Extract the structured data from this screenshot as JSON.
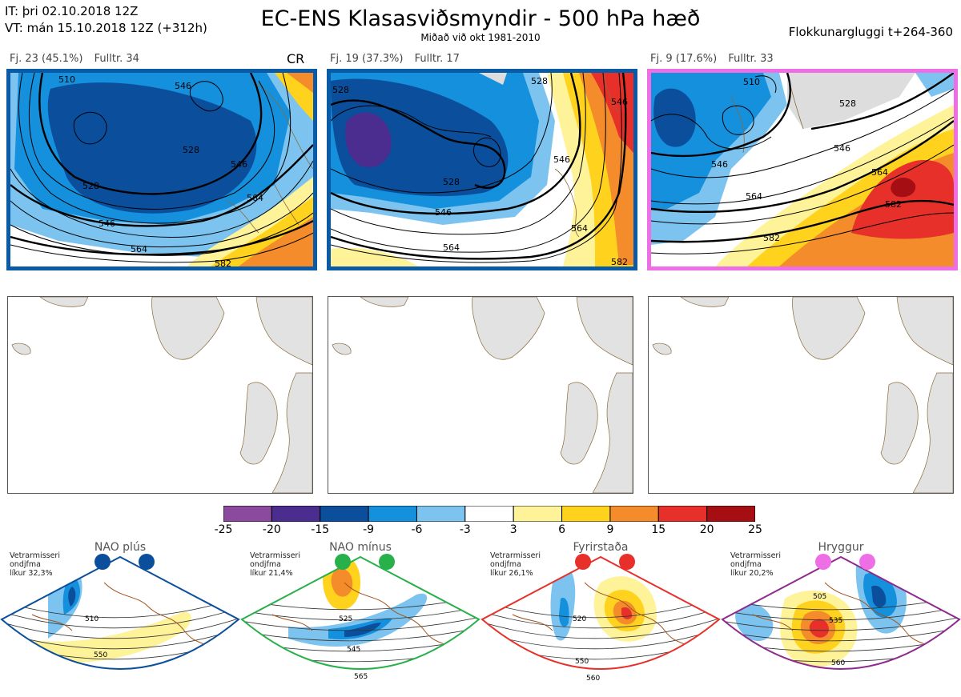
{
  "header": {
    "it_line": "IT: þri 02.10.2018 12Z",
    "vt_line": "VT: mán 15.10.2018 12Z  (+312h)",
    "title": "EC-ENS Klasasviðsmyndir - 500 hPa hæð",
    "subtitle": "Miðað við okt 1981-2010",
    "window": "Flokkunargluggi t+264-360"
  },
  "clusters": [
    {
      "count": "Fj. 23 (45.1%)",
      "rep": "Fulltr. 34",
      "tag": "CR",
      "border": "#0b5aa6",
      "contour_labels": [
        "510",
        "528",
        "546",
        "564",
        "582",
        "528",
        "546",
        "564",
        "546"
      ]
    },
    {
      "count": "Fj. 19 (37.3%)",
      "rep": "Fulltr. 17",
      "tag": "",
      "border": "#0b5aa6",
      "contour_labels": [
        "528",
        "528",
        "546",
        "564",
        "546",
        "564",
        "582",
        "528",
        "546"
      ]
    },
    {
      "count": "Fj. 9 (17.6%)",
      "rep": "Fulltr. 33",
      "tag": "",
      "border": "#ee6ee6",
      "contour_labels": [
        "510",
        "528",
        "546",
        "564",
        "564",
        "582",
        "582",
        "546"
      ]
    }
  ],
  "colorbar": {
    "ticks": [
      "-25",
      "-20",
      "-15",
      "-9",
      "-6",
      "-3",
      "3",
      "6",
      "9",
      "15",
      "20",
      "25"
    ],
    "colors": [
      "#8b4a9e",
      "#4a2d8f",
      "#0b4f9c",
      "#1490dc",
      "#7cc4ef",
      "#ffffff",
      "#fff39a",
      "#ffd21e",
      "#f48c2b",
      "#e8302a",
      "#a50f14"
    ]
  },
  "regimes": [
    {
      "name": "NAO plús",
      "note": [
        "Vetrarmisseri",
        "ondjfma",
        "líkur 32,3%"
      ],
      "dot": "#0b4f9c",
      "edge": "#0b4f9c",
      "labels": [
        "510",
        "550"
      ]
    },
    {
      "name": "NAO mínus",
      "note": [
        "Vetrarmisseri",
        "ondjfma",
        "líkur 21,4%"
      ],
      "dot": "#28b04a",
      "edge": "#28b04a",
      "labels": [
        "525",
        "545",
        "565"
      ]
    },
    {
      "name": "Fyrirstaða",
      "note": [
        "Vetrarmisseri",
        "ondjfma",
        "líkur 26,1%"
      ],
      "dot": "#e8302a",
      "edge": "#e8302a",
      "labels": [
        "520",
        "550",
        "560"
      ]
    },
    {
      "name": "Hryggur",
      "note": [
        "Vetrarmisseri",
        "ondjfma",
        "líkur 20,2%"
      ],
      "dot": "#ee6ee6",
      "edge": "#8e2a8e",
      "labels": [
        "505",
        "535",
        "560"
      ]
    }
  ]
}
